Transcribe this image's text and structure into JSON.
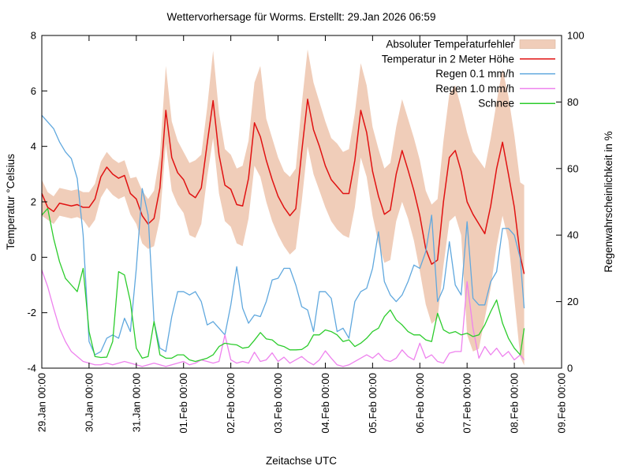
{
  "title": "Wettervorhersage für Worms. Erstellt: 29.Jan 2026 06:59",
  "chart_data": {
    "type": "line",
    "title": "Wettervorhersage für Worms. Erstellt: 29.Jan 2026 06:59",
    "xlabel": "Zeitachse UTC",
    "ylabel_left": "Temperatur °Celsius",
    "ylabel_right": "Regenwahrscheinlichkeit in %",
    "grid": false,
    "legend_position": "top-right-inside",
    "ylim_left": [
      -4,
      8
    ],
    "yticks_left": [
      -4,
      -2,
      0,
      2,
      4,
      6,
      8
    ],
    "ylim_right": [
      0,
      100
    ],
    "yticks_right": [
      0,
      20,
      40,
      60,
      80,
      100
    ],
    "x_tick_hours": [
      0,
      24,
      48,
      72,
      96,
      120,
      144,
      168,
      192,
      216,
      240,
      264
    ],
    "x_tick_labels": [
      "29.Jan 00:00",
      "30.Jan 00:00",
      "31.Jan 00:00",
      "01.Feb 00:00",
      "02.Feb 00:00",
      "03.Feb 00:00",
      "04.Feb 00:00",
      "05.Feb 00:00",
      "06.Feb 00:00",
      "07.Feb 00:00",
      "08.Feb 00:00",
      "09.Feb 00:00"
    ],
    "x_hours": [
      0,
      3,
      6,
      9,
      12,
      15,
      18,
      21,
      24,
      27,
      30,
      33,
      36,
      39,
      42,
      45,
      48,
      51,
      54,
      57,
      60,
      63,
      66,
      69,
      72,
      75,
      78,
      81,
      84,
      87,
      90,
      93,
      96,
      99,
      102,
      105,
      108,
      111,
      114,
      117,
      120,
      123,
      126,
      129,
      132,
      135,
      138,
      141,
      144,
      147,
      150,
      153,
      156,
      159,
      162,
      165,
      168,
      171,
      174,
      177,
      180,
      183,
      186,
      189,
      192,
      195,
      198,
      201,
      204,
      207,
      210,
      213,
      216,
      219,
      222,
      225,
      228,
      231,
      234,
      237,
      240,
      243,
      245
    ],
    "series": [
      {
        "name": "Absoluter Temperaturfehler",
        "type": "band",
        "axis": "left",
        "color": "#f0cdb9",
        "upper": [
          2.8,
          2.35,
          2.2,
          2.5,
          2.45,
          2.4,
          2.45,
          2.35,
          2.35,
          2.65,
          3.45,
          3.8,
          3.55,
          3.4,
          3.5,
          2.85,
          2.9,
          2.4,
          2.1,
          2.4,
          3.7,
          6.9,
          4.9,
          4.2,
          3.8,
          3.4,
          3.5,
          3.7,
          5.4,
          7.45,
          5.2,
          3.9,
          3.7,
          3.2,
          3.3,
          4.2,
          6.3,
          6.9,
          5.0,
          4.3,
          3.6,
          3.1,
          2.9,
          3.2,
          5.5,
          7.5,
          6.3,
          5.6,
          4.9,
          4.3,
          4.1,
          3.8,
          3.9,
          5.2,
          7.0,
          6.2,
          4.7,
          3.9,
          3.2,
          3.4,
          4.7,
          5.7,
          5.0,
          4.3,
          3.5,
          2.4,
          1.9,
          2.1,
          4.2,
          5.9,
          6.2,
          5.4,
          4.5,
          3.8,
          3.5,
          3.2,
          4.3,
          5.6,
          6.8,
          5.8,
          4.4,
          2.7,
          2.6
        ],
        "lower": [
          1.5,
          1.35,
          1.2,
          1.5,
          1.45,
          1.4,
          1.45,
          1.35,
          1.05,
          1.35,
          2.15,
          2.5,
          2.25,
          2.1,
          2.2,
          1.55,
          1.2,
          0.5,
          0.3,
          0.4,
          1.4,
          4.1,
          2.4,
          1.9,
          1.6,
          0.8,
          0.7,
          1.2,
          2.9,
          4.3,
          2.3,
          1.3,
          1.1,
          0.5,
          0.4,
          1.4,
          3.3,
          2.9,
          2.0,
          1.3,
          0.8,
          0.4,
          0.1,
          0.3,
          2.0,
          4.0,
          3.0,
          2.4,
          1.8,
          1.3,
          1.0,
          0.8,
          0.7,
          1.8,
          3.6,
          2.9,
          1.5,
          0.5,
          -0.2,
          -0.1,
          1.3,
          2.0,
          1.4,
          0.6,
          -0.5,
          -1.7,
          -2.4,
          -2.2,
          -0.3,
          1.3,
          1.5,
          0.8,
          -2.8,
          -3.4,
          -3.3,
          -2.2,
          -1.1,
          0.4,
          1.5,
          0.6,
          -1.5,
          -3.6,
          -3.9
        ]
      },
      {
        "name": "Temperatur in 2 Meter Höhe",
        "type": "line",
        "axis": "left",
        "color": "#e01212",
        "values": [
          2.3,
          1.8,
          1.65,
          1.95,
          1.9,
          1.85,
          1.9,
          1.8,
          1.8,
          2.1,
          2.9,
          3.25,
          3.0,
          2.85,
          2.95,
          2.3,
          2.1,
          1.5,
          1.2,
          1.4,
          2.5,
          5.3,
          3.6,
          3.05,
          2.8,
          2.3,
          2.15,
          2.5,
          4.1,
          5.65,
          3.7,
          2.6,
          2.45,
          1.9,
          1.85,
          2.85,
          4.85,
          4.35,
          3.5,
          2.8,
          2.2,
          1.8,
          1.5,
          1.75,
          3.8,
          5.7,
          4.6,
          4.0,
          3.3,
          2.8,
          2.55,
          2.3,
          2.3,
          3.5,
          5.3,
          4.5,
          3.1,
          2.2,
          1.55,
          1.7,
          3.0,
          3.85,
          3.15,
          2.4,
          1.5,
          0.3,
          -0.25,
          -0.1,
          2.0,
          3.6,
          3.85,
          3.1,
          2.0,
          1.55,
          1.2,
          0.85,
          1.85,
          3.2,
          4.15,
          3.0,
          1.8,
          0.05,
          -0.6
        ]
      },
      {
        "name": "Regen 0.1 mm/h",
        "type": "line",
        "axis": "right",
        "color": "#60a8de",
        "values": [
          76,
          74,
          72,
          68,
          65,
          63,
          57,
          40,
          8,
          4,
          5,
          9,
          10,
          9,
          15,
          11,
          30,
          54,
          46,
          14,
          6,
          5,
          15.5,
          23,
          23,
          22,
          23,
          20,
          13,
          14,
          12,
          10,
          19,
          30.5,
          18,
          13.5,
          16,
          15.5,
          20,
          26.5,
          27,
          30,
          30,
          25,
          18.5,
          17.5,
          11,
          23,
          23,
          21,
          11,
          12,
          9,
          20,
          23,
          24,
          30,
          41,
          26,
          22,
          20,
          22,
          26,
          31,
          30,
          35,
          46,
          20,
          24,
          38,
          25,
          22,
          44,
          21,
          19,
          19,
          26,
          29,
          42,
          42,
          40,
          33,
          18
        ]
      },
      {
        "name": "Regen 1.0 mm/h",
        "type": "line",
        "axis": "right",
        "color": "#ee82ee",
        "values": [
          29.5,
          24.5,
          18,
          12,
          8,
          5,
          3.5,
          2,
          1.5,
          1,
          1,
          1.5,
          1,
          1.5,
          2,
          1.5,
          1,
          0.5,
          1,
          1.5,
          1,
          0.5,
          1,
          1.5,
          2,
          1,
          1.5,
          2.5,
          2,
          1.5,
          2,
          10,
          2.5,
          1.5,
          2,
          1.5,
          4.8,
          2,
          2.5,
          4.6,
          2,
          3.3,
          1.5,
          2.5,
          3.5,
          2,
          1,
          2.5,
          5.2,
          3,
          1,
          0.5,
          1,
          2,
          3,
          4,
          3,
          4.5,
          2.5,
          2,
          3,
          5.5,
          3.5,
          2.5,
          7.5,
          3,
          4,
          2,
          1.5,
          4.5,
          5,
          5,
          26,
          12,
          3,
          6.5,
          4,
          6,
          3.5,
          5,
          2.5,
          4,
          2.5
        ]
      },
      {
        "name": "Schnee",
        "type": "line",
        "axis": "right",
        "color": "#2ccc2c",
        "values": [
          46,
          48,
          39,
          32,
          27,
          25,
          23,
          30,
          11,
          3.5,
          3.2,
          3.3,
          8,
          29,
          28,
          20,
          6,
          3,
          3.5,
          14,
          4,
          3,
          3,
          4,
          4,
          2.5,
          2,
          2.5,
          3,
          4,
          6.5,
          7.5,
          7.2,
          7,
          6,
          6.3,
          8.4,
          10.7,
          8.8,
          8.5,
          7,
          6.5,
          5.5,
          5.5,
          5.6,
          6.8,
          10,
          10,
          11.5,
          11,
          10,
          8,
          8.5,
          6.5,
          7.5,
          9,
          11,
          12,
          15.5,
          17.5,
          14.5,
          13,
          11,
          10,
          10,
          8.5,
          8,
          16.5,
          11.5,
          10.5,
          11,
          10,
          10.5,
          9.5,
          10,
          13,
          17,
          20.5,
          13.5,
          9,
          6,
          4,
          12
        ]
      }
    ],
    "colors": {
      "border": "#000000",
      "background": "#ffffff",
      "error_band": "#f0cdb9",
      "temperature": "#e01212",
      "rain01": "#60a8de",
      "rain10": "#ee82ee",
      "snow": "#2ccc2c"
    }
  }
}
